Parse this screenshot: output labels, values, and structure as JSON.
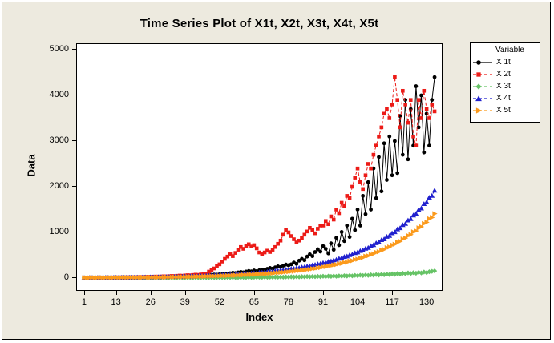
{
  "figure": {
    "background_color": "#EDEADF",
    "plot_background_color": "#FFFFFF",
    "frame_border_color": "#000000",
    "axis_color": "#000000"
  },
  "legend": {
    "title": "Variable"
  },
  "chart_data": {
    "type": "line",
    "title": "Time Series Plot of X1t, X2t, X3t, X4t, X5t",
    "xlabel": "Index",
    "ylabel": "Data",
    "x_ticks": [
      1,
      13,
      26,
      39,
      52,
      65,
      78,
      91,
      104,
      117,
      130
    ],
    "y_ticks": [
      0,
      1000,
      2000,
      3000,
      4000,
      5000
    ],
    "xlim": [
      -2,
      136
    ],
    "ylim": [
      -281,
      5140
    ],
    "grid": false,
    "legend_position": "upper-right-outside",
    "legend_title": "Variable",
    "x_start": 1,
    "x_step": 1,
    "n_points": 133,
    "series": [
      {
        "name": "X 1t",
        "color": "#000000",
        "marker": "circle",
        "line_style": "solid",
        "values": [
          6,
          5,
          6,
          7,
          6,
          7,
          8,
          7,
          8,
          9,
          10,
          9,
          11,
          12,
          11,
          13,
          14,
          13,
          15,
          16,
          15,
          17,
          19,
          18,
          20,
          22,
          21,
          24,
          26,
          25,
          28,
          31,
          29,
          33,
          36,
          34,
          39,
          42,
          40,
          45,
          49,
          47,
          53,
          57,
          54,
          61,
          66,
          63,
          71,
          77,
          73,
          82,
          85,
          95,
          90,
          105,
          115,
          108,
          122,
          133,
          125,
          142,
          155,
          146,
          165,
          150,
          170,
          185,
          175,
          200,
          220,
          205,
          235,
          255,
          240,
          270,
          295,
          280,
          300,
          340,
          310,
          380,
          420,
          390,
          470,
          520,
          480,
          570,
          630,
          580,
          700,
          640,
          540,
          760,
          620,
          880,
          720,
          1010,
          810,
          1150,
          900,
          1300,
          1050,
          1500,
          1150,
          1800,
          1400,
          2100,
          1500,
          2400,
          1750,
          2650,
          1900,
          2950,
          2150,
          3100,
          2250,
          3000,
          2300,
          3550,
          2700,
          3900,
          2600,
          3700,
          2900,
          4200,
          3300,
          4000,
          2750,
          3600,
          2900,
          3900,
          4400
        ]
      },
      {
        "name": "X 2t",
        "color": "#EC1B17",
        "marker": "square",
        "line_style": "dashed",
        "values": [
          7,
          8,
          7,
          9,
          8,
          9,
          10,
          9,
          11,
          12,
          11,
          13,
          14,
          13,
          15,
          16,
          15,
          17,
          19,
          18,
          21,
          23,
          22,
          25,
          27,
          26,
          30,
          32,
          31,
          35,
          38,
          36,
          41,
          45,
          43,
          49,
          53,
          50,
          57,
          62,
          59,
          67,
          73,
          69,
          79,
          86,
          95,
          140,
          180,
          210,
          260,
          300,
          360,
          420,
          470,
          520,
          480,
          550,
          620,
          680,
          640,
          700,
          740,
          690,
          720,
          650,
          560,
          520,
          560,
          600,
          570,
          620,
          680,
          750,
          820,
          950,
          1050,
          1000,
          920,
          850,
          780,
          820,
          880,
          950,
          1020,
          1100,
          1050,
          980,
          1080,
          1150,
          1150,
          1250,
          1180,
          1350,
          1280,
          1500,
          1420,
          1650,
          1580,
          1800,
          1750,
          2000,
          2200,
          2400,
          2100,
          1950,
          2250,
          2500,
          2400,
          2700,
          2900,
          3100,
          3300,
          3600,
          3700,
          3500,
          3800,
          4400,
          3900,
          3300,
          4100,
          3800,
          3400,
          3900,
          3100,
          2900,
          3900,
          3500,
          4100,
          3700,
          3500,
          3800,
          3650
        ]
      },
      {
        "name": "X 3t",
        "color": "#66C366",
        "marker": "diamond",
        "line_style": "dashed",
        "values": [
          2,
          1,
          2,
          2,
          2,
          2,
          2,
          2,
          2,
          2,
          2,
          3,
          2,
          3,
          2,
          3,
          3,
          3,
          3,
          3,
          3,
          4,
          3,
          4,
          4,
          3,
          4,
          4,
          5,
          4,
          5,
          4,
          5,
          5,
          6,
          5,
          6,
          5,
          7,
          6,
          7,
          6,
          8,
          7,
          8,
          7,
          9,
          8,
          9,
          8,
          10,
          9,
          11,
          9,
          12,
          10,
          12,
          10,
          13,
          11,
          14,
          12,
          15,
          13,
          16,
          14,
          17,
          15,
          18,
          16,
          19,
          17,
          21,
          18,
          22,
          19,
          24,
          21,
          26,
          22,
          28,
          24,
          30,
          26,
          32,
          27,
          34,
          29,
          37,
          31,
          39,
          33,
          42,
          36,
          44,
          38,
          47,
          41,
          50,
          44,
          54,
          47,
          58,
          51,
          62,
          54,
          66,
          58,
          70,
          62,
          75,
          66,
          80,
          71,
          86,
          76,
          92,
          81,
          98,
          87,
          105,
          93,
          111,
          99,
          117,
          105,
          124,
          111,
          131,
          118,
          138,
          146,
          155
        ]
      },
      {
        "name": "X 4t",
        "color": "#2121CE",
        "marker": "triangle-up",
        "line_style": "dashed",
        "values": [
          8,
          8,
          9,
          9,
          9,
          10,
          10,
          10,
          11,
          11,
          12,
          12,
          13,
          13,
          14,
          14,
          15,
          15,
          17,
          17,
          18,
          18,
          19,
          20,
          21,
          22,
          23,
          23,
          25,
          25,
          27,
          27,
          30,
          30,
          32,
          33,
          35,
          35,
          38,
          39,
          42,
          42,
          45,
          46,
          49,
          50,
          54,
          54,
          58,
          59,
          63,
          64,
          69,
          70,
          74,
          76,
          80,
          82,
          88,
          90,
          96,
          98,
          104,
          106,
          113,
          115,
          123,
          125,
          133,
          136,
          145,
          148,
          158,
          161,
          172,
          175,
          186,
          190,
          203,
          207,
          220,
          225,
          239,
          245,
          260,
          267,
          283,
          292,
          309,
          315,
          333,
          340,
          363,
          371,
          394,
          404,
          429,
          441,
          467,
          478,
          507,
          520,
          551,
          566,
          598,
          612,
          649,
          666,
          707,
          726,
          769,
          790,
          836,
          855,
          908,
          928,
          986,
          1010,
          1072,
          1098,
          1166,
          1192,
          1267,
          1296,
          1377,
          1408,
          1496,
          1530,
          1626,
          1662,
          1767,
          1806,
          1920
        ]
      },
      {
        "name": "X 5t",
        "color": "#FB9A1C",
        "marker": "triangle-right",
        "line_style": "dashed",
        "values": [
          6,
          6,
          6,
          7,
          7,
          7,
          7,
          8,
          8,
          8,
          9,
          9,
          9,
          10,
          10,
          11,
          11,
          11,
          12,
          12,
          13,
          13,
          14,
          14,
          15,
          16,
          16,
          17,
          18,
          18,
          19,
          20,
          21,
          22,
          23,
          23,
          25,
          25,
          27,
          28,
          30,
          30,
          32,
          33,
          35,
          36,
          38,
          39,
          42,
          42,
          45,
          46,
          50,
          50,
          54,
          55,
          58,
          59,
          63,
          64,
          69,
          70,
          75,
          76,
          81,
          83,
          89,
          90,
          96,
          98,
          105,
          106,
          114,
          116,
          124,
          126,
          135,
          137,
          146,
          149,
          159,
          162,
          173,
          176,
          188,
          192,
          205,
          209,
          223,
          228,
          243,
          248,
          265,
          270,
          288,
          294,
          313,
          320,
          341,
          348,
          371,
          379,
          404,
          412,
          440,
          448,
          478,
          487,
          519,
          530,
          564,
          576,
          613,
          626,
          666,
          681,
          724,
          740,
          787,
          805,
          856,
          875,
          930,
          951,
          1011,
          1033,
          1099,
          1123,
          1194,
          1221,
          1298,
          1327,
          1410
        ]
      }
    ]
  }
}
